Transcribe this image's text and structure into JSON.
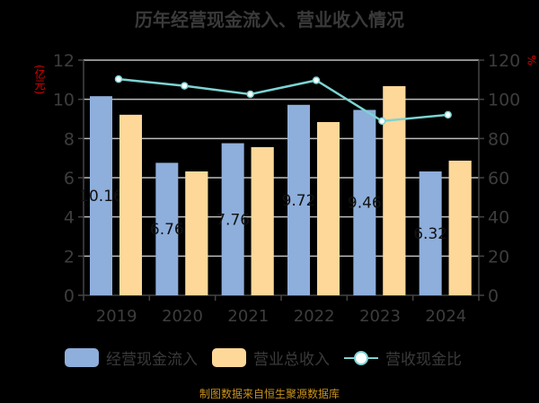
{
  "title": "历年经营现金流入、营业收入情况",
  "units": {
    "left": "(亿元)",
    "right": "%"
  },
  "legend": [
    {
      "label": "经营现金流入",
      "color": "#8eaedb",
      "type": "bar"
    },
    {
      "label": "营业总收入",
      "color": "#fed898",
      "type": "bar"
    },
    {
      "label": "营收现金比",
      "color": "#7dd3d3",
      "type": "line"
    }
  ],
  "footer": "制图数据来自恒生聚源数据库",
  "chart_data": {
    "type": "bar",
    "title": "历年经营现金流入、营业收入情况",
    "categories": [
      "2019",
      "2020",
      "2021",
      "2022",
      "2023",
      "2024"
    ],
    "series": [
      {
        "name": "经营现金流入",
        "axis": "left",
        "values": [
          10.16,
          6.76,
          7.76,
          9.72,
          9.46,
          6.32
        ],
        "labels": [
          "10.16",
          "6.76",
          "7.76",
          "9.72",
          "9.46",
          "6.32"
        ]
      },
      {
        "name": "营业总收入",
        "axis": "left",
        "values": [
          9.21,
          6.32,
          7.56,
          8.84,
          10.67,
          6.87
        ]
      },
      {
        "name": "营收现金比",
        "axis": "right",
        "type": "line",
        "values": [
          110.3,
          106.9,
          102.6,
          109.7,
          88.9,
          92.1
        ]
      }
    ],
    "ylabel": "(亿元)",
    "ylim": [
      0,
      12
    ],
    "yticks": [
      0,
      2,
      4,
      6,
      8,
      10,
      12
    ],
    "y2label": "%",
    "y2lim": [
      0,
      120
    ],
    "y2ticks": [
      0,
      20,
      40,
      60,
      80,
      100,
      120
    ],
    "grid": true,
    "legend_position": "bottom"
  }
}
